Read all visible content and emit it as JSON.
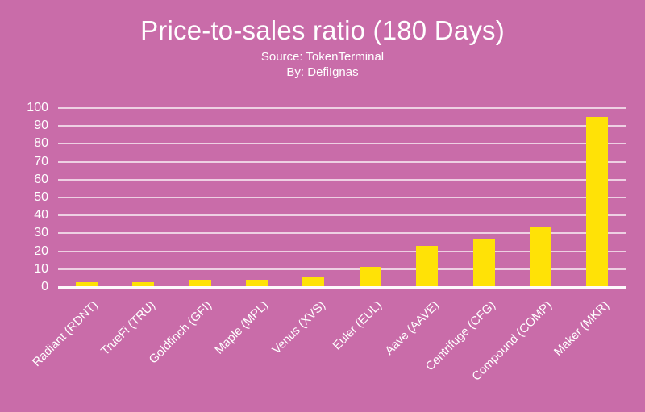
{
  "title": "Price-to-sales ratio (180 Days)",
  "subtitle": {
    "source_line": "Source: TokenTerminal",
    "author_line": "By: DefiIgnas"
  },
  "colors": {
    "background": "#C96CA9",
    "bar": "#FFE206",
    "gridline": "rgba(255,255,255,0.68)",
    "axis_line": "rgba(255,255,255,0.96)",
    "text": "#FFFFFF"
  },
  "chart_data": {
    "type": "bar",
    "categories": [
      "Radiant (RDNT)",
      "TrueFi (TRU)",
      "Goldfinch (GFI)",
      "Maple (MPL)",
      "Venus (XVS)",
      "Euler (EUL)",
      "Aave (AAVE)",
      "Centrifuge (CFG)",
      "Compound (COMP)",
      "Maker (MKR)"
    ],
    "values": [
      2.9,
      2.9,
      3.9,
      4.1,
      5.9,
      11.2,
      23.2,
      27.1,
      33.9,
      95.2
    ],
    "title": "Price-to-sales ratio (180 Days)",
    "xlabel": "",
    "ylabel": "",
    "ylim": [
      0,
      100
    ],
    "ytick_step": 10,
    "ytick_labels": [
      "0",
      "10",
      "20",
      "30",
      "40",
      "50",
      "60",
      "70",
      "80",
      "90",
      "100"
    ],
    "grid": true,
    "legend": false,
    "bar_color": "#FFE206",
    "background_color": "#C96CA9",
    "x_label_rotation_deg": -45
  }
}
